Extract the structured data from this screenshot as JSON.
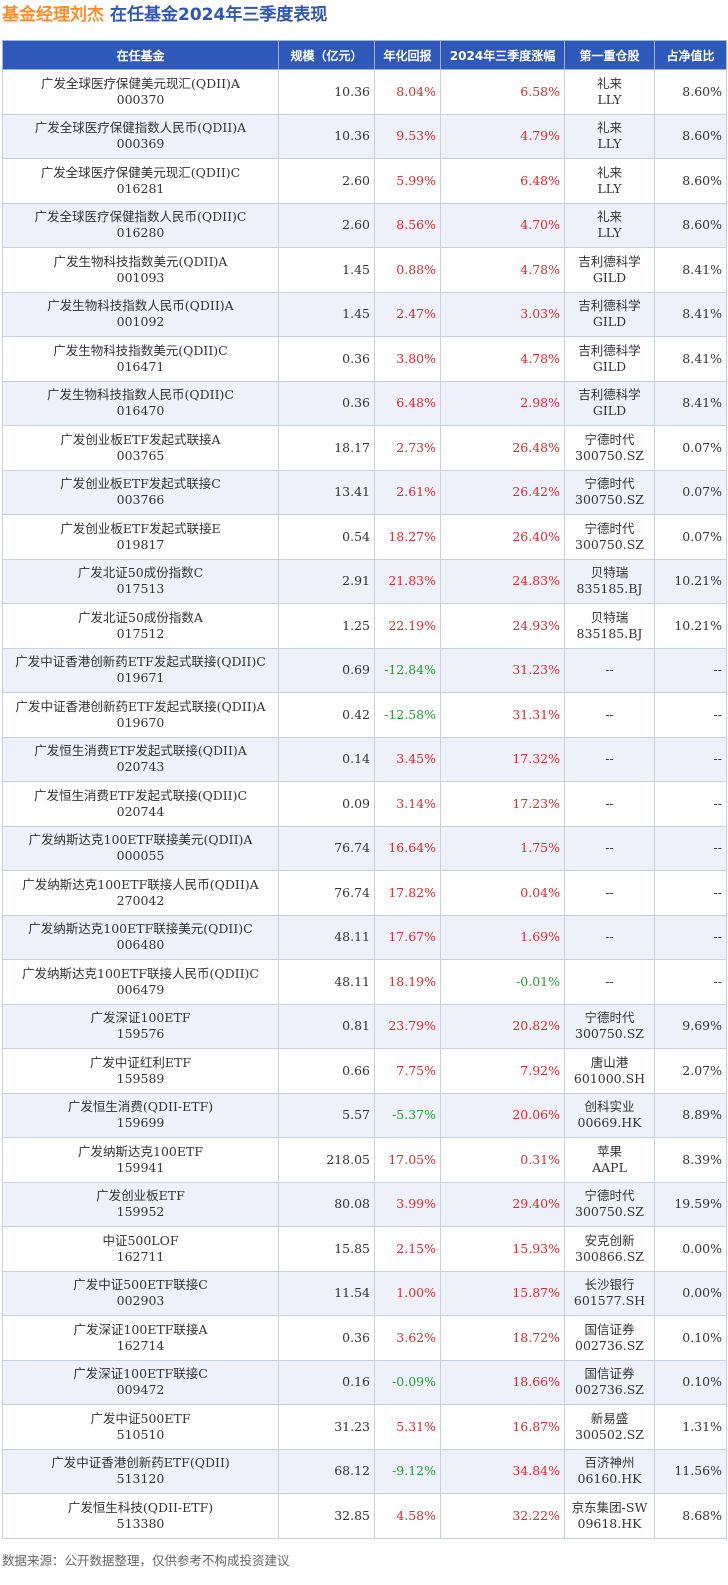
{
  "header": {
    "title_orange": "基金经理刘杰",
    "title_blue": "在任基金2024年三季度表现"
  },
  "table": {
    "columns": [
      "在任基金",
      "规模（亿元）",
      "年化回报",
      "2024年三季度涨幅",
      "第一重仓股",
      "占净值比"
    ],
    "rows": [
      {
        "name": "广发全球医疗保健美元现汇(QDII)A",
        "code": "000370",
        "size": "10.36",
        "annual": "8.04%",
        "q3": "6.58%",
        "stock": "礼来",
        "ticker": "LLY",
        "ratio": "8.60%"
      },
      {
        "name": "广发全球医疗保健指数人民币(QDII)A",
        "code": "000369",
        "size": "10.36",
        "annual": "9.53%",
        "q3": "4.79%",
        "stock": "礼来",
        "ticker": "LLY",
        "ratio": "8.60%"
      },
      {
        "name": "广发全球医疗保健美元现汇(QDII)C",
        "code": "016281",
        "size": "2.60",
        "annual": "5.99%",
        "q3": "6.48%",
        "stock": "礼来",
        "ticker": "LLY",
        "ratio": "8.60%"
      },
      {
        "name": "广发全球医疗保健指数人民币(QDII)C",
        "code": "016280",
        "size": "2.60",
        "annual": "8.56%",
        "q3": "4.70%",
        "stock": "礼来",
        "ticker": "LLY",
        "ratio": "8.60%"
      },
      {
        "name": "广发生物科技指数美元(QDII)A",
        "code": "001093",
        "size": "1.45",
        "annual": "0.88%",
        "q3": "4.78%",
        "stock": "吉利德科学",
        "ticker": "GILD",
        "ratio": "8.41%"
      },
      {
        "name": "广发生物科技指数人民币(QDII)A",
        "code": "001092",
        "size": "1.45",
        "annual": "2.47%",
        "q3": "3.03%",
        "stock": "吉利德科学",
        "ticker": "GILD",
        "ratio": "8.41%"
      },
      {
        "name": "广发生物科技指数美元(QDII)C",
        "code": "016471",
        "size": "0.36",
        "annual": "3.80%",
        "q3": "4.78%",
        "stock": "吉利德科学",
        "ticker": "GILD",
        "ratio": "8.41%"
      },
      {
        "name": "广发生物科技指数人民币(QDII)C",
        "code": "016470",
        "size": "0.36",
        "annual": "6.48%",
        "q3": "2.98%",
        "stock": "吉利德科学",
        "ticker": "GILD",
        "ratio": "8.41%"
      },
      {
        "name": "广发创业板ETF发起式联接A",
        "code": "003765",
        "size": "18.17",
        "annual": "2.73%",
        "q3": "26.48%",
        "stock": "宁德时代",
        "ticker": "300750.SZ",
        "ratio": "0.07%"
      },
      {
        "name": "广发创业板ETF发起式联接C",
        "code": "003766",
        "size": "13.41",
        "annual": "2.61%",
        "q3": "26.42%",
        "stock": "宁德时代",
        "ticker": "300750.SZ",
        "ratio": "0.07%"
      },
      {
        "name": "广发创业板ETF发起式联接E",
        "code": "019817",
        "size": "0.54",
        "annual": "18.27%",
        "q3": "26.40%",
        "stock": "宁德时代",
        "ticker": "300750.SZ",
        "ratio": "0.07%"
      },
      {
        "name": "广发北证50成份指数C",
        "code": "017513",
        "size": "2.91",
        "annual": "21.83%",
        "q3": "24.83%",
        "stock": "贝特瑞",
        "ticker": "835185.BJ",
        "ratio": "10.21%"
      },
      {
        "name": "广发北证50成份指数A",
        "code": "017512",
        "size": "1.25",
        "annual": "22.19%",
        "q3": "24.93%",
        "stock": "贝特瑞",
        "ticker": "835185.BJ",
        "ratio": "10.21%"
      },
      {
        "name": "广发中证香港创新药ETF发起式联接(QDII)C",
        "code": "019671",
        "size": "0.69",
        "annual": "-12.84%",
        "q3": "31.23%",
        "stock": "--",
        "ticker": "",
        "ratio": "--"
      },
      {
        "name": "广发中证香港创新药ETF发起式联接(QDII)A",
        "code": "019670",
        "size": "0.42",
        "annual": "-12.58%",
        "q3": "31.31%",
        "stock": "--",
        "ticker": "",
        "ratio": "--"
      },
      {
        "name": "广发恒生消费ETF发起式联接(QDII)A",
        "code": "020743",
        "size": "0.14",
        "annual": "3.45%",
        "q3": "17.32%",
        "stock": "--",
        "ticker": "",
        "ratio": "--"
      },
      {
        "name": "广发恒生消费ETF发起式联接(QDII)C",
        "code": "020744",
        "size": "0.09",
        "annual": "3.14%",
        "q3": "17.23%",
        "stock": "--",
        "ticker": "",
        "ratio": "--"
      },
      {
        "name": "广发纳斯达克100ETF联接美元(QDII)A",
        "code": "000055",
        "size": "76.74",
        "annual": "16.64%",
        "q3": "1.75%",
        "stock": "--",
        "ticker": "",
        "ratio": "--"
      },
      {
        "name": "广发纳斯达克100ETF联接人民币(QDII)A",
        "code": "270042",
        "size": "76.74",
        "annual": "17.82%",
        "q3": "0.04%",
        "stock": "--",
        "ticker": "",
        "ratio": "--"
      },
      {
        "name": "广发纳斯达克100ETF联接美元(QDII)C",
        "code": "006480",
        "size": "48.11",
        "annual": "17.67%",
        "q3": "1.69%",
        "stock": "--",
        "ticker": "",
        "ratio": "--"
      },
      {
        "name": "广发纳斯达克100ETF联接人民币(QDII)C",
        "code": "006479",
        "size": "48.11",
        "annual": "18.19%",
        "q3": "-0.01%",
        "stock": "--",
        "ticker": "",
        "ratio": "--"
      },
      {
        "name": "广发深证100ETF",
        "code": "159576",
        "size": "0.81",
        "annual": "23.79%",
        "q3": "20.82%",
        "stock": "宁德时代",
        "ticker": "300750.SZ",
        "ratio": "9.69%"
      },
      {
        "name": "广发中证红利ETF",
        "code": "159589",
        "size": "0.66",
        "annual": "7.75%",
        "q3": "7.92%",
        "stock": "唐山港",
        "ticker": "601000.SH",
        "ratio": "2.07%"
      },
      {
        "name": "广发恒生消费(QDII-ETF)",
        "code": "159699",
        "size": "5.57",
        "annual": "-5.37%",
        "q3": "20.06%",
        "stock": "创科实业",
        "ticker": "00669.HK",
        "ratio": "8.89%"
      },
      {
        "name": "广发纳斯达克100ETF",
        "code": "159941",
        "size": "218.05",
        "annual": "17.05%",
        "q3": "0.31%",
        "stock": "苹果",
        "ticker": "AAPL",
        "ratio": "8.39%"
      },
      {
        "name": "广发创业板ETF",
        "code": "159952",
        "size": "80.08",
        "annual": "3.99%",
        "q3": "29.40%",
        "stock": "宁德时代",
        "ticker": "300750.SZ",
        "ratio": "19.59%"
      },
      {
        "name": "中证500LOF",
        "code": "162711",
        "size": "15.85",
        "annual": "2.15%",
        "q3": "15.93%",
        "stock": "安克创新",
        "ticker": "300866.SZ",
        "ratio": "0.00%"
      },
      {
        "name": "广发中证500ETF联接C",
        "code": "002903",
        "size": "11.54",
        "annual": "1.00%",
        "q3": "15.87%",
        "stock": "长沙银行",
        "ticker": "601577.SH",
        "ratio": "0.00%"
      },
      {
        "name": "广发深证100ETF联接A",
        "code": "162714",
        "size": "0.36",
        "annual": "3.62%",
        "q3": "18.72%",
        "stock": "国信证券",
        "ticker": "002736.SZ",
        "ratio": "0.10%"
      },
      {
        "name": "广发深证100ETF联接C",
        "code": "009472",
        "size": "0.16",
        "annual": "-0.09%",
        "q3": "18.66%",
        "stock": "国信证券",
        "ticker": "002736.SZ",
        "ratio": "0.10%"
      },
      {
        "name": "广发中证500ETF",
        "code": "510510",
        "size": "31.23",
        "annual": "5.31%",
        "q3": "16.87%",
        "stock": "新易盛",
        "ticker": "300502.SZ",
        "ratio": "1.31%"
      },
      {
        "name": "广发中证香港创新药ETF(QDII)",
        "code": "513120",
        "size": "68.12",
        "annual": "-9.12%",
        "q3": "34.84%",
        "stock": "百济神州",
        "ticker": "06160.HK",
        "ratio": "11.56%"
      },
      {
        "name": "广发恒生科技(QDII-ETF)",
        "code": "513380",
        "size": "32.85",
        "annual": "4.58%",
        "q3": "32.22%",
        "stock": "京东集团-SW",
        "ticker": "09618.HK",
        "ratio": "8.68%"
      }
    ]
  },
  "footer": {
    "source": "数据来源：公开数据整理，仅供参考不构成投资建议"
  },
  "colors": {
    "header_bg": "#2f58bb",
    "positive": "#e8262c",
    "negative": "#1fa32e",
    "title_orange": "#ff8c2a",
    "title_blue": "#2e56b8"
  }
}
